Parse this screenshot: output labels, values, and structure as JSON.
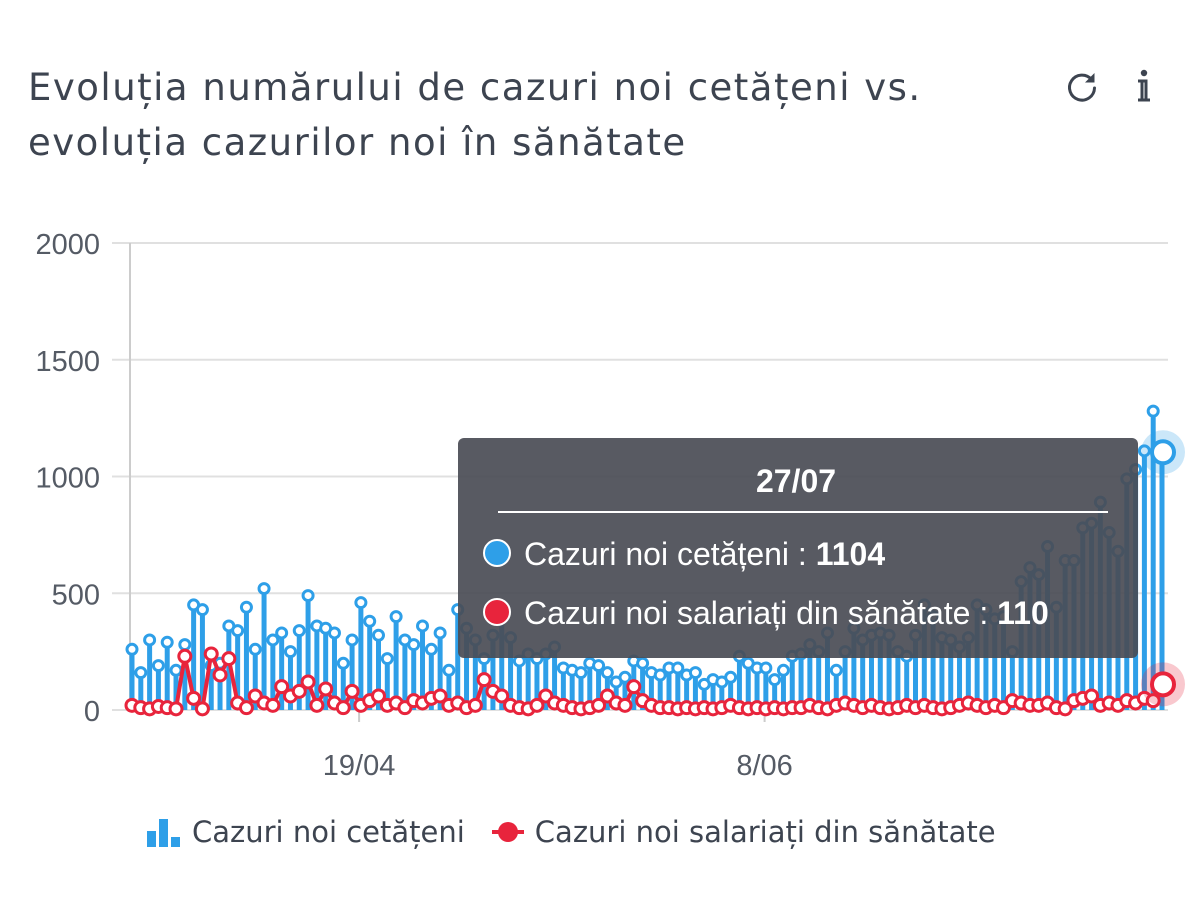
{
  "title": "Evoluția numărului de cazuri noi cetățeni vs. evoluția cazurilor noi în sănătate",
  "toolbar": {
    "refresh_icon": "refresh-icon",
    "info_icon": "info-icon"
  },
  "colors": {
    "series1": "#2e9fe8",
    "series2": "#e8243c",
    "grid": "#e0e0e0",
    "tooltip_bg": "#4a4c55",
    "text": "#3d4450"
  },
  "tooltip": {
    "title": "27/07",
    "rows": [
      {
        "label": "Cazuri noi cetățeni : ",
        "value": "1104"
      },
      {
        "label": "Cazuri noi salariați din sănătate : ",
        "value": "110"
      }
    ]
  },
  "legend": [
    {
      "label": "Cazuri noi cetățeni",
      "icon": "bar-chart-icon"
    },
    {
      "label": "Cazuri noi salariați din sănătate",
      "icon": "dot-line-icon"
    }
  ],
  "chart_data": {
    "type": "bar",
    "x_start": "2020-03-22",
    "x_end": "2020-07-27",
    "x_ticks": [
      "19/04",
      "8/06"
    ],
    "ylim": [
      0,
      2000
    ],
    "y_ticks": [
      0,
      500,
      1000,
      1500,
      2000
    ],
    "grid": true,
    "legend_position": "bottom",
    "series": [
      {
        "name": "Cazuri noi cetățeni",
        "type": "bar",
        "values": [
          260,
          160,
          300,
          190,
          290,
          170,
          280,
          450,
          430,
          190,
          200,
          360,
          340,
          440,
          260,
          520,
          300,
          330,
          250,
          340,
          490,
          360,
          350,
          330,
          200,
          300,
          460,
          380,
          320,
          220,
          400,
          300,
          280,
          360,
          260,
          330,
          170,
          430,
          350,
          300,
          220,
          320,
          400,
          310,
          210,
          240,
          220,
          240,
          270,
          180,
          170,
          160,
          200,
          190,
          160,
          120,
          140,
          210,
          200,
          160,
          150,
          180,
          180,
          150,
          160,
          110,
          130,
          120,
          140,
          230,
          200,
          180,
          180,
          130,
          170,
          230,
          240,
          280,
          250,
          330,
          170,
          250,
          350,
          300,
          320,
          330,
          320,
          250,
          230,
          320,
          450,
          400,
          310,
          300,
          270,
          310,
          450,
          430,
          390,
          400,
          250,
          550,
          610,
          580,
          700,
          440,
          640,
          640,
          780,
          800,
          890,
          760,
          680,
          990,
          1030,
          1110,
          1280,
          1104
        ]
      },
      {
        "name": "Cazuri noi salariați din sănătate",
        "type": "line",
        "values": [
          20,
          10,
          5,
          15,
          10,
          5,
          230,
          50,
          5,
          240,
          150,
          220,
          30,
          10,
          60,
          30,
          20,
          100,
          60,
          80,
          120,
          20,
          90,
          30,
          10,
          80,
          20,
          40,
          60,
          20,
          30,
          10,
          40,
          30,
          50,
          60,
          20,
          30,
          10,
          20,
          130,
          80,
          60,
          20,
          10,
          5,
          20,
          60,
          30,
          20,
          10,
          5,
          10,
          20,
          60,
          30,
          20,
          100,
          40,
          20,
          10,
          10,
          5,
          10,
          5,
          10,
          5,
          10,
          20,
          10,
          5,
          10,
          5,
          10,
          5,
          10,
          10,
          20,
          10,
          5,
          20,
          30,
          20,
          10,
          20,
          10,
          5,
          10,
          20,
          10,
          20,
          10,
          5,
          10,
          20,
          30,
          20,
          10,
          20,
          10,
          40,
          30,
          20,
          20,
          30,
          10,
          5,
          40,
          50,
          60,
          20,
          30,
          20,
          40,
          30,
          50,
          40,
          110
        ]
      }
    ]
  }
}
